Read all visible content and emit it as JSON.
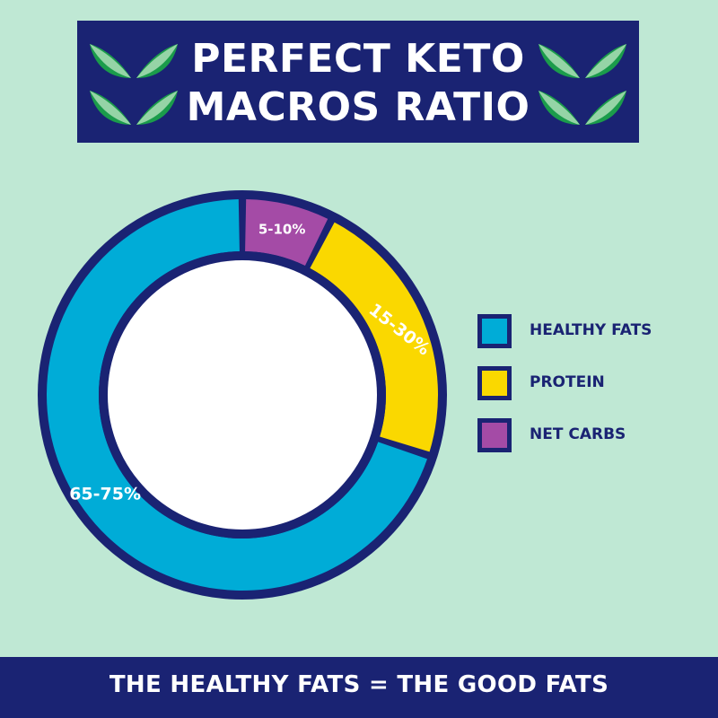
{
  "title": {
    "line1": "PERFECT KETO",
    "line2": "MACROS RATIO"
  },
  "footer": {
    "text": "THE HEALTHY FATS = THE GOOD FATS"
  },
  "colors": {
    "background": "#bfe8d4",
    "navy": "#1a2373",
    "fats": "#00acd7",
    "protein": "#fad800",
    "carbs": "#a44ba6",
    "leaf_dark": "#1b9c4b",
    "leaf_light": "#95d4a6"
  },
  "icons": {
    "title_decoration": "leaf-sprout-icon"
  },
  "chart_data": {
    "type": "pie",
    "style": "donut",
    "categories": [
      "HEALTHY FATS",
      "PROTEIN",
      "NET CARBS"
    ],
    "values": [
      70,
      22.5,
      7.5
    ],
    "data_labels": [
      "65-75%",
      "15-30%",
      "5-10%"
    ],
    "colors": [
      "#00acd7",
      "#fad800",
      "#a44ba6"
    ],
    "legend": {
      "placement": "right",
      "entries": [
        "HEALTHY FATS",
        "PROTEIN",
        "NET CARBS"
      ]
    }
  }
}
